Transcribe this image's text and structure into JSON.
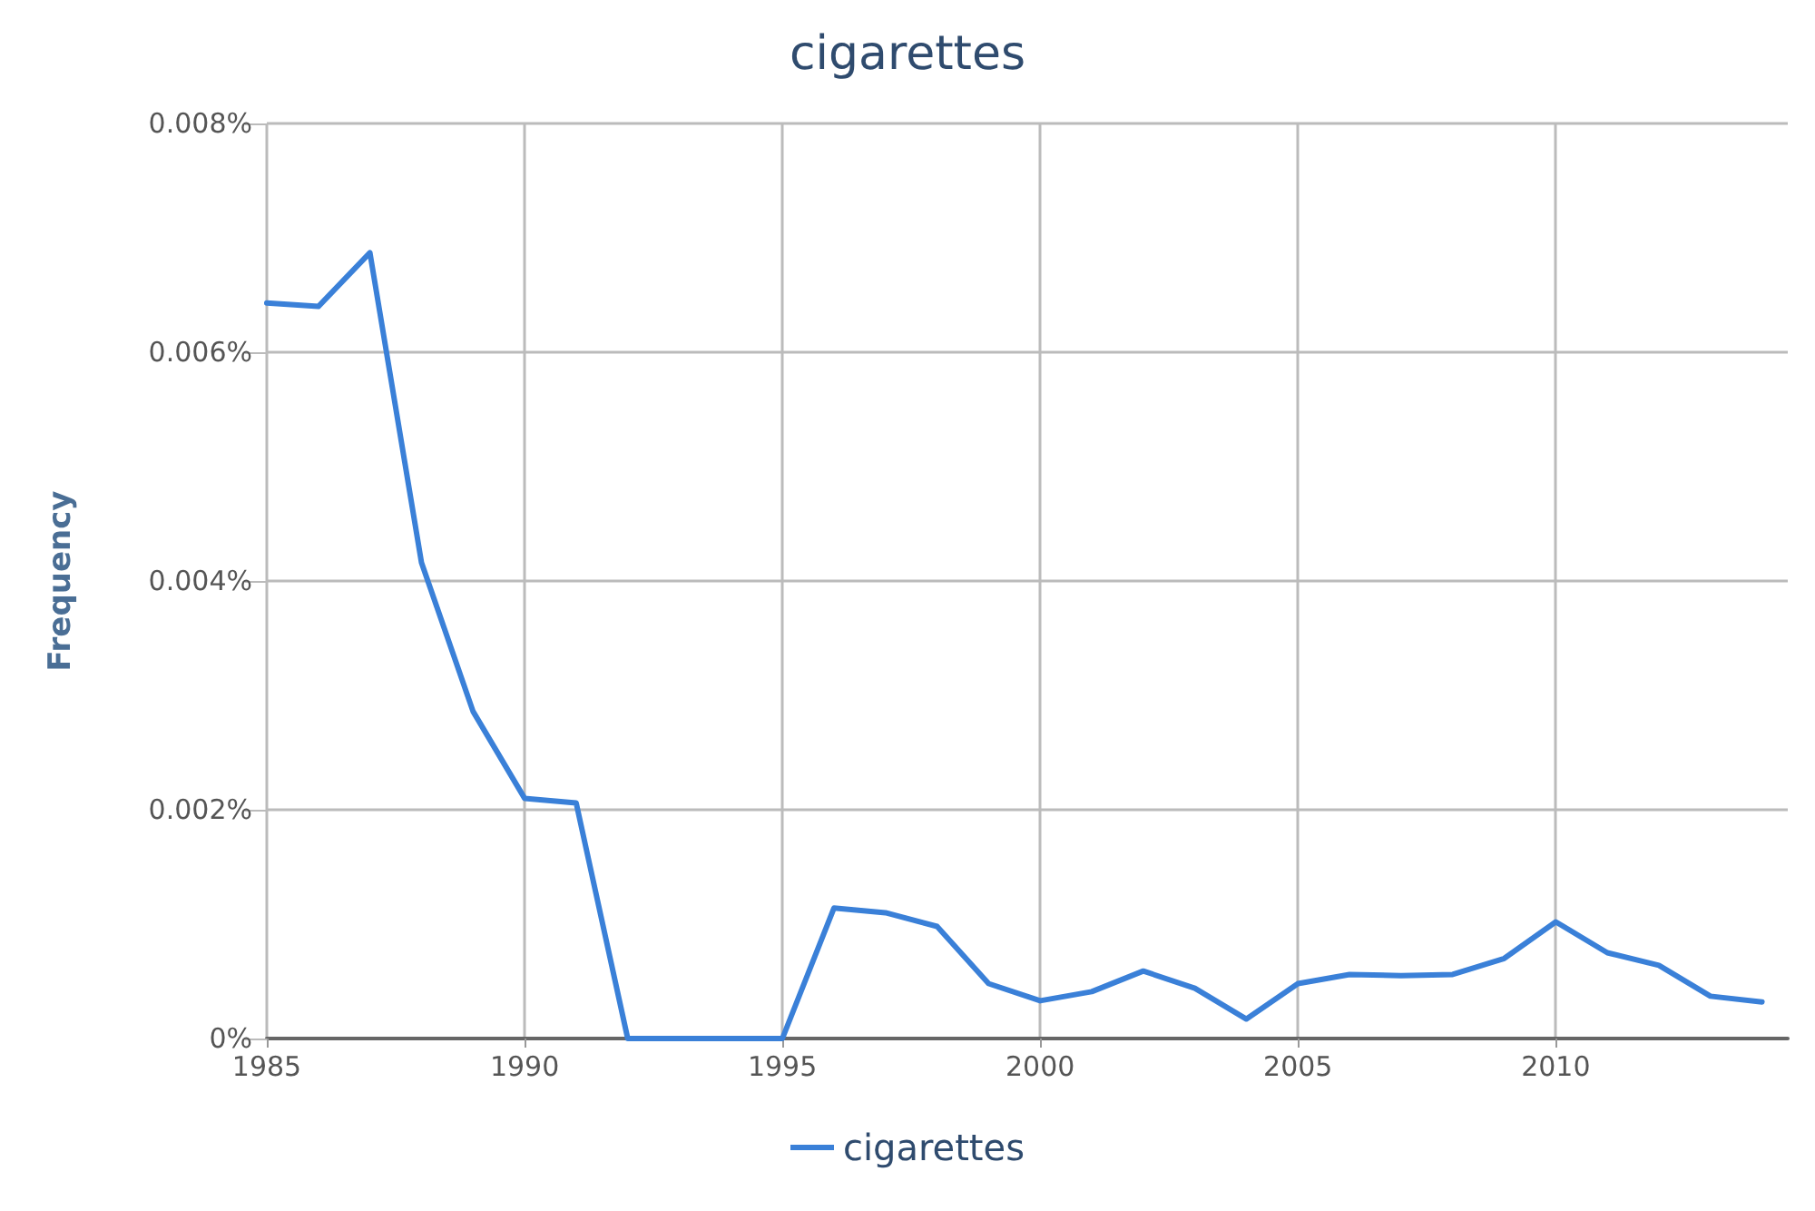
{
  "chart_data": {
    "type": "line",
    "title": "cigarettes",
    "ylabel": "Frequency",
    "x": [
      1985,
      1986,
      1987,
      1988,
      1989,
      1990,
      1991,
      1992,
      1993,
      1994,
      1995,
      1996,
      1997,
      1998,
      1999,
      2000,
      2001,
      2002,
      2003,
      2004,
      2005,
      2006,
      2007,
      2008,
      2009,
      2010,
      2011,
      2012,
      2013,
      2014
    ],
    "series": [
      {
        "name": "cigarettes",
        "color": "#3a80d8",
        "values": [
          0.00643,
          0.0064,
          0.00687,
          0.00416,
          0.00286,
          0.0021,
          0.00206,
          0,
          0,
          0,
          0,
          0.00114,
          0.0011,
          0.00098,
          0.00048,
          0.00033,
          0.00041,
          0.00059,
          0.00044,
          0.00017,
          0.00048,
          0.00056,
          0.00055,
          0.00056,
          0.0007,
          0.00102,
          0.00075,
          0.00064,
          0.00037,
          0.00032
        ]
      }
    ],
    "xlim": [
      1985,
      2014.5
    ],
    "xticks": [
      1985,
      1990,
      1995,
      2000,
      2005,
      2010
    ],
    "ylim": [
      0,
      0.008
    ],
    "yticks": [
      {
        "value": 0,
        "label": "0%"
      },
      {
        "value": 0.002,
        "label": "0.002%"
      },
      {
        "value": 0.004,
        "label": "0.004%"
      },
      {
        "value": 0.006,
        "label": "0.006%"
      },
      {
        "value": 0.008,
        "label": "0.008%"
      }
    ],
    "grid": true,
    "legend": "bottom",
    "marker": "none",
    "line_style": "solid"
  }
}
